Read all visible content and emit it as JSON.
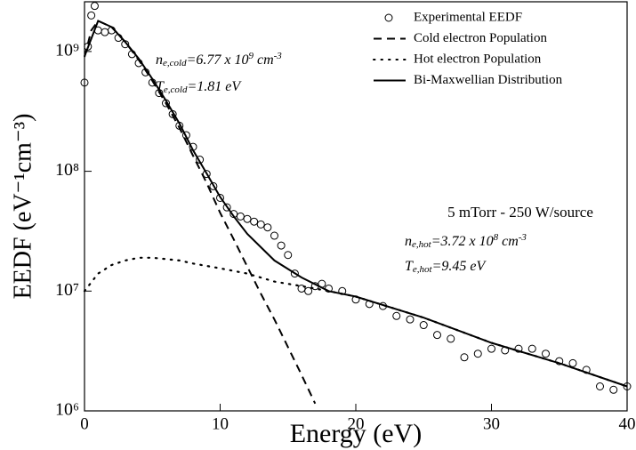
{
  "chart_data": {
    "type": "scatter-line",
    "xlabel": "Energy (eV)",
    "ylabel": "EEDF (eV⁻¹cm⁻³)",
    "xlim": [
      0,
      40
    ],
    "xticks": [
      0,
      10,
      20,
      30,
      40
    ],
    "ylim": [
      1000000,
      2600000000
    ],
    "log_y": true,
    "yticks": [
      {
        "value": 1000000,
        "label": "10⁶"
      },
      {
        "value": 10000000,
        "label": "10⁷"
      },
      {
        "value": 100000000,
        "label": "10⁸"
      },
      {
        "value": 1000000000,
        "label": "10⁹"
      }
    ],
    "legend": "upper right",
    "series": [
      {
        "name": "Experimental EEDF",
        "color": "#000000",
        "style": "circle",
        "x": [
          0,
          0.25,
          0.5,
          0.75,
          1,
          1.5,
          2,
          2.5,
          3,
          3.5,
          4,
          4.5,
          5,
          5.5,
          6,
          6.5,
          7,
          7.5,
          8,
          8.5,
          9,
          9.5,
          10,
          10.5,
          11,
          11.5,
          12,
          12.5,
          13,
          13.5,
          14,
          14.5,
          15,
          15.5,
          16,
          16.5,
          17,
          17.5,
          18,
          19,
          20,
          21,
          22,
          23,
          24,
          25,
          26,
          27,
          28,
          29,
          30,
          31,
          32,
          33,
          34,
          35,
          36,
          37,
          38,
          39,
          40
        ],
        "values": [
          550000000.0,
          1100000000.0,
          2000000000.0,
          2400000000.0,
          1500000000.0,
          1450000000.0,
          1500000000.0,
          1300000000.0,
          1150000000.0,
          950000000.0,
          800000000.0,
          670000000.0,
          550000000.0,
          450000000.0,
          370000000.0,
          300000000.0,
          240000000.0,
          200000000.0,
          160000000.0,
          125000000.0,
          95000000.0,
          75000000.0,
          60000000.0,
          50000000.0,
          44000000.0,
          42000000.0,
          40000000.0,
          38000000.0,
          36000000.0,
          34000000.0,
          29000000.0,
          24000000.0,
          20000000.0,
          14000000.0,
          10500000.0,
          10000000.0,
          11000000.0,
          11500000.0,
          10500000.0,
          10000000.0,
          8500000.0,
          7800000.0,
          7500000.0,
          6200000.0,
          5800000.0,
          5200000.0,
          4300000.0,
          4000000.0,
          2800000.0,
          3000000.0,
          3300000.0,
          3200000.0,
          3300000.0,
          3300000.0,
          3000000.0,
          2600000.0,
          2500000.0,
          2200000.0,
          1600000.0,
          1500000.0,
          1600000.0
        ]
      },
      {
        "name": "Cold electron Population",
        "color": "#000000",
        "style": "dashed",
        "x": [
          0,
          0.5,
          1,
          2,
          3,
          4,
          5,
          6,
          7,
          8,
          9,
          10,
          11,
          12,
          13,
          14,
          15,
          16,
          17
        ],
        "values": [
          900000000.0,
          1500000000.0,
          1800000000.0,
          1600000000.0,
          1200000000.0,
          850000000.0,
          570000000.0,
          370000000.0,
          230000000.0,
          135000000.0,
          80000000.0,
          45000000.0,
          27000000.0,
          16000000.0,
          9500000.0,
          5800000.0,
          3400000.0,
          2000000.0,
          1150000.0
        ]
      },
      {
        "name": "Hot electron Population",
        "color": "#000000",
        "style": "dotted",
        "x": [
          0,
          1,
          2,
          3,
          4,
          5,
          6,
          7,
          8,
          10,
          12,
          14,
          16,
          18,
          20,
          25,
          30,
          35,
          40
        ],
        "values": [
          10000000.0,
          14000000.0,
          16500000.0,
          18000000.0,
          19000000.0,
          19000000.0,
          18500000.0,
          18000000.0,
          17000000.0,
          15500000.0,
          14000000.0,
          12000000.0,
          11000000.0,
          10000000.0,
          9000000.0,
          6000000.0,
          3700000.0,
          2500000.0,
          1600000.0
        ]
      },
      {
        "name": "Bi-Maxwellian Distribution",
        "color": "#000000",
        "style": "solid",
        "x": [
          0,
          1,
          2,
          3,
          4,
          5,
          6,
          7,
          8,
          9,
          10,
          11,
          12,
          14,
          16,
          18,
          20,
          25,
          30,
          35,
          40
        ],
        "values": [
          910000000.0,
          1800000000.0,
          1600000000.0,
          1200000000.0,
          870000000.0,
          590000000.0,
          390000000.0,
          250000000.0,
          150000000.0,
          96000000.0,
          61000000.0,
          42000000.0,
          30000000.0,
          18000000.0,
          13000000.0,
          10000000.0,
          9000000.0,
          6000000.0,
          3700000.0,
          2500000.0,
          1600000.0
        ]
      }
    ],
    "annotations": [
      [
        {
          "t": "n"
        },
        {
          "t": "e,cold",
          "pos": "sub"
        },
        {
          "t": "=6.77 x 10"
        },
        {
          "t": "9",
          "pos": "sup"
        },
        {
          "t": " cm"
        },
        {
          "t": "-3",
          "pos": "sup"
        }
      ],
      [
        {
          "t": "T"
        },
        {
          "t": "e,cold",
          "pos": "sub"
        },
        {
          "t": "=1.81 eV"
        }
      ],
      [
        {
          "t": "n"
        },
        {
          "t": "e,hot",
          "pos": "sub"
        },
        {
          "t": "=3.72 x 10"
        },
        {
          "t": "8",
          "pos": "sup"
        },
        {
          "t": " cm"
        },
        {
          "t": "-3",
          "pos": "sup"
        }
      ],
      [
        {
          "t": "T"
        },
        {
          "t": "e,hot",
          "pos": "sub"
        },
        {
          "t": "=9.45 eV"
        }
      ]
    ],
    "note": "5 mTorr - 250 W/source"
  }
}
